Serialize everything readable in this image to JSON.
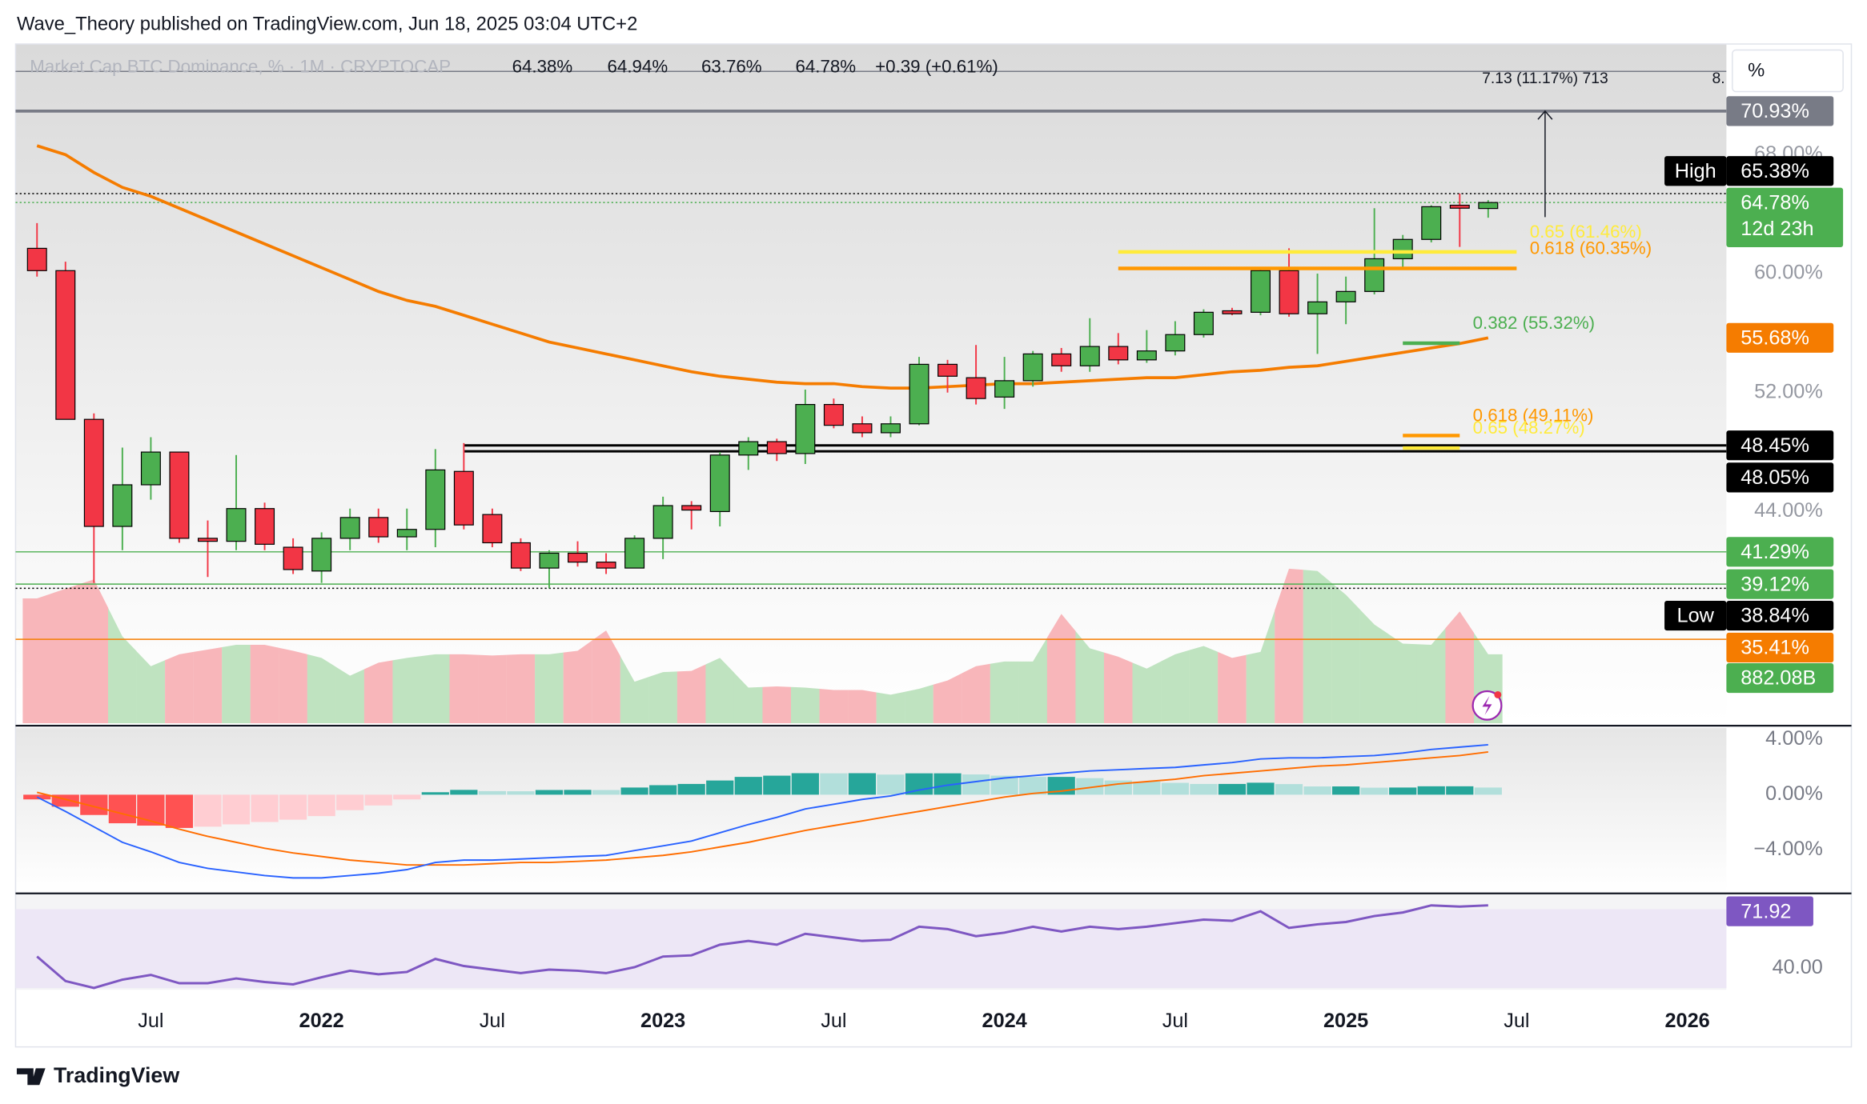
{
  "header": {
    "publisher": "Wave_Theory published on TradingView.com, Jun 18, 2025 03:04 UTC+2",
    "footer": "TradingView"
  },
  "chart_data": {
    "type": "candlestick",
    "title": "Market Cap BTC Dominance, % · 1M · CRYPTOCAP",
    "legend_labels": [
      "64.38%",
      "64.94%",
      "63.76%",
      "64.78%"
    ],
    "change_label": "+0.39 (+0.61%)",
    "scale_mode": "%",
    "grid": false,
    "ylim": [
      29.76,
      75.44
    ],
    "yticks": [
      {
        "value": 44,
        "label": "44.00%"
      },
      {
        "value": 52,
        "label": "52.00%"
      },
      {
        "value": 60,
        "label": "60.00%"
      },
      {
        "value": 68,
        "label": "68.00%"
      }
    ],
    "xticks": [
      {
        "value": "2021-07",
        "label": "Jul"
      },
      {
        "value": "2022-01",
        "label": "2022"
      },
      {
        "value": "2022-07",
        "label": "Jul"
      },
      {
        "value": "2023-01",
        "label": "2023"
      },
      {
        "value": "2023-07",
        "label": "Jul"
      },
      {
        "value": "2024-01",
        "label": "2024"
      },
      {
        "value": "2024-07",
        "label": "Jul"
      },
      {
        "value": "2025-01",
        "label": "2025"
      },
      {
        "value": "2025-07",
        "label": "Jul"
      },
      {
        "value": "2026-01",
        "label": "2026"
      }
    ],
    "candles": {
      "up_color": "#4caf50",
      "down_color": "#f23645",
      "x": [
        "2021-03",
        "2021-04",
        "2021-05",
        "2021-06",
        "2021-07",
        "2021-08",
        "2021-09",
        "2021-10",
        "2021-11",
        "2021-12",
        "2022-01",
        "2022-02",
        "2022-03",
        "2022-04",
        "2022-05",
        "2022-06",
        "2022-07",
        "2022-08",
        "2022-09",
        "2022-10",
        "2022-11",
        "2022-12",
        "2023-01",
        "2023-02",
        "2023-03",
        "2023-04",
        "2023-05",
        "2023-06",
        "2023-07",
        "2023-08",
        "2023-09",
        "2023-10",
        "2023-11",
        "2023-12",
        "2024-01",
        "2024-02",
        "2024-03",
        "2024-04",
        "2024-05",
        "2024-06",
        "2024-07",
        "2024-08",
        "2024-09",
        "2024-10",
        "2024-11",
        "2024-12",
        "2025-01",
        "2025-02",
        "2025-03",
        "2025-04",
        "2025-05",
        "2025-06"
      ],
      "open": [
        61.7,
        60.2,
        50.2,
        43.0,
        45.8,
        48.0,
        42.2,
        42.0,
        44.2,
        41.6,
        40.0,
        42.2,
        43.6,
        42.3,
        42.8,
        46.7,
        43.8,
        41.9,
        40.2,
        41.2,
        40.6,
        40.2,
        42.2,
        44.4,
        44.0,
        47.8,
        48.7,
        47.9,
        51.2,
        49.9,
        49.3,
        49.9,
        53.9,
        53.0,
        51.7,
        52.8,
        54.6,
        53.8,
        55.1,
        54.2,
        54.8,
        55.9,
        57.5,
        57.4,
        60.2,
        57.3,
        58.1,
        58.8,
        61.0,
        62.3,
        64.6,
        64.38
      ],
      "high": [
        63.4,
        60.8,
        50.6,
        48.3,
        49.0,
        48.0,
        43.4,
        47.8,
        44.6,
        42.2,
        42.6,
        44.2,
        44.2,
        44.2,
        48.2,
        48.6,
        44.2,
        42.2,
        41.4,
        42.0,
        41.2,
        42.4,
        45.0,
        44.7,
        48.0,
        49.0,
        48.9,
        52.2,
        51.6,
        50.4,
        50.4,
        54.4,
        54.2,
        55.2,
        54.4,
        54.8,
        55.0,
        57.0,
        56.0,
        56.2,
        56.8,
        57.6,
        57.7,
        60.4,
        61.7,
        60.0,
        59.8,
        64.4,
        62.6,
        64.6,
        65.38,
        64.94
      ],
      "low": [
        59.8,
        50.2,
        39.2,
        41.4,
        44.8,
        41.9,
        39.6,
        41.4,
        41.4,
        39.8,
        39.2,
        41.4,
        41.9,
        41.4,
        41.6,
        42.8,
        41.6,
        40.0,
        38.84,
        40.3,
        39.8,
        40.2,
        40.8,
        42.8,
        43.0,
        46.8,
        47.4,
        47.2,
        49.6,
        49.0,
        49.0,
        49.8,
        52.0,
        51.2,
        50.9,
        52.4,
        53.4,
        53.4,
        53.9,
        54.0,
        54.5,
        55.7,
        57.2,
        57.2,
        57.1,
        54.6,
        56.6,
        58.6,
        60.4,
        62.1,
        61.8,
        63.76
      ],
      "close": [
        60.2,
        50.2,
        43.0,
        45.8,
        48.0,
        42.2,
        42.0,
        44.2,
        41.8,
        40.1,
        42.2,
        43.6,
        42.3,
        42.8,
        46.8,
        43.1,
        41.9,
        40.2,
        41.2,
        40.6,
        40.2,
        42.2,
        44.4,
        44.1,
        47.8,
        48.7,
        47.9,
        51.2,
        49.8,
        49.3,
        49.9,
        53.9,
        53.1,
        51.6,
        52.8,
        54.6,
        53.8,
        55.1,
        54.2,
        54.8,
        55.9,
        57.4,
        57.3,
        60.2,
        57.3,
        58.1,
        58.8,
        61.0,
        62.3,
        64.5,
        64.4,
        64.78
      ]
    },
    "ma": {
      "color": "#f57c00",
      "values": [
        68.6,
        68.0,
        66.8,
        65.8,
        65.2,
        64.4,
        63.6,
        62.8,
        62.0,
        61.2,
        60.4,
        59.6,
        58.8,
        58.2,
        57.8,
        57.2,
        56.6,
        56.0,
        55.4,
        55.0,
        54.6,
        54.2,
        53.8,
        53.4,
        53.1,
        52.9,
        52.7,
        52.6,
        52.6,
        52.4,
        52.3,
        52.3,
        52.4,
        52.5,
        52.6,
        52.6,
        52.7,
        52.8,
        52.9,
        53.0,
        53.0,
        53.2,
        53.4,
        53.5,
        53.7,
        53.8,
        54.1,
        54.4,
        54.7,
        55.0,
        55.3,
        55.68
      ]
    },
    "volume": {
      "ylim": [
        0,
        8679
      ],
      "up_color": "#bfe3c0",
      "down_color": "#f8b6ba",
      "badge_color": "#4caf50",
      "values": [
        1596,
        1718,
        1839,
        1110,
        730,
        882,
        942,
        1003,
        1003,
        927,
        836,
        608,
        775,
        836,
        882,
        882,
        866,
        882,
        882,
        927,
        1186,
        532,
        654,
        669,
        836,
        456,
        471,
        456,
        426,
        426,
        365,
        441,
        547,
        730,
        790,
        790,
        1398,
        958,
        851,
        699,
        882,
        988,
        836,
        912,
        1976,
        1946,
        1642,
        1262,
        1018,
        1003,
        1429,
        882.08
      ],
      "value_labels": [
        null,
        null,
        null,
        null,
        null,
        null,
        null,
        null,
        null,
        null,
        null,
        null,
        null,
        null,
        null,
        null,
        null,
        null,
        null,
        null,
        null,
        null,
        null,
        null,
        null,
        null,
        null,
        null,
        null,
        null,
        null,
        null,
        null,
        null,
        null,
        null,
        null,
        null,
        null,
        null,
        null,
        null,
        null,
        null,
        null,
        null,
        null,
        null,
        null,
        null,
        null,
        "882.08B"
      ]
    },
    "levels": [
      {
        "value": 73.6,
        "color": "#787b86",
        "line": "solid"
      },
      {
        "value": 70.93,
        "label": "70.93%",
        "color": "#787b86",
        "line": "thick"
      },
      {
        "value": 65.38,
        "label": "65.38%",
        "tag": "High",
        "color": "#000000",
        "line": "dotted"
      },
      {
        "value": 64.78,
        "label": "64.78%",
        "countdown": "12d 23h",
        "color": "#4caf50",
        "line": "dotted"
      },
      {
        "value": 55.68,
        "label": "55.68%",
        "color": "#f57c00"
      },
      {
        "value": 48.45,
        "label": "48.45%",
        "color": "#000000",
        "line": "solid",
        "from": "2022-06"
      },
      {
        "value": 48.05,
        "label": "48.05%",
        "color": "#000000",
        "line": "solid",
        "from": "2022-06"
      },
      {
        "value": 41.29,
        "label": "41.29%",
        "color": "#4caf50",
        "line": "solid"
      },
      {
        "value": 39.12,
        "label": "39.12%",
        "color": "#4caf50",
        "line": "solid"
      },
      {
        "value": 38.84,
        "label": "38.84%",
        "tag": "Low",
        "color": "#000000",
        "line": "dotted"
      },
      {
        "value": 35.41,
        "label": "35.41%",
        "color": "#f57c00",
        "line": "solid"
      }
    ],
    "fibs": [
      {
        "value": 61.46,
        "label": "0.65 (61.46%)",
        "color": "#ffeb3b",
        "from": "2024-05",
        "to": "2025-07"
      },
      {
        "value": 60.35,
        "label": "0.618 (60.35%)",
        "color": "#ff9800",
        "from": "2024-05",
        "to": "2025-07"
      },
      {
        "value": 55.32,
        "label": "0.382 (55.32%)",
        "color": "#4caf50",
        "from": "2025-03",
        "to": "2025-05"
      },
      {
        "value": 49.11,
        "label": "0.618 (49.11%)",
        "color": "#ff9800",
        "from": "2025-03",
        "to": "2025-05"
      },
      {
        "value": 48.27,
        "label": "0.65 (48.27%)",
        "color": "#ffeb3b",
        "from": "2025-03",
        "to": "2025-05"
      }
    ],
    "measure": {
      "x": "2025-08",
      "from": 63.8,
      "to": 70.93,
      "label": "7.13 (11.17%) 713",
      "edge_label": "8."
    },
    "macd": {
      "ylim": [
        -7.07,
        4.83
      ],
      "yticks": [
        {
          "value": 4,
          "label": "4.00%"
        },
        {
          "value": 0,
          "label": "0.00%"
        },
        {
          "value": -4,
          "label": "−4.00%"
        }
      ],
      "macd_color": "#2962ff",
      "signal_color": "#ff6d00",
      "hist_colors": {
        "up_grow": "#26a69a",
        "up_fall": "#b2dfdb",
        "down_fall": "#ff5252",
        "down_grow": "#ffcdd2"
      },
      "macd": [
        -0.17,
        -1.21,
        -2.33,
        -3.45,
        -4.14,
        -4.91,
        -5.34,
        -5.6,
        -5.86,
        -6.03,
        -6.03,
        -5.86,
        -5.69,
        -5.43,
        -4.91,
        -4.74,
        -4.74,
        -4.66,
        -4.57,
        -4.48,
        -4.4,
        -4.05,
        -3.71,
        -3.36,
        -2.76,
        -2.16,
        -1.64,
        -1.03,
        -0.69,
        -0.34,
        -0.09,
        0.34,
        0.69,
        0.95,
        1.21,
        1.38,
        1.55,
        1.72,
        1.81,
        1.9,
        1.98,
        2.16,
        2.33,
        2.59,
        2.67,
        2.67,
        2.76,
        2.84,
        3.02,
        3.28,
        3.45,
        3.62
      ],
      "signal": [
        0.17,
        -0.34,
        -0.86,
        -1.38,
        -1.9,
        -2.5,
        -3.02,
        -3.45,
        -3.88,
        -4.22,
        -4.48,
        -4.74,
        -4.91,
        -5.09,
        -5.09,
        -5.09,
        -5.0,
        -4.91,
        -4.91,
        -4.83,
        -4.74,
        -4.57,
        -4.4,
        -4.14,
        -3.79,
        -3.45,
        -3.02,
        -2.59,
        -2.24,
        -1.9,
        -1.55,
        -1.21,
        -0.86,
        -0.52,
        -0.17,
        0.09,
        0.26,
        0.52,
        0.78,
        0.95,
        1.12,
        1.38,
        1.55,
        1.72,
        1.9,
        2.07,
        2.16,
        2.33,
        2.5,
        2.67,
        2.84,
        3.1
      ],
      "histogram": [
        -0.34,
        -0.87,
        -1.47,
        -2.07,
        -2.24,
        -2.41,
        -2.32,
        -2.15,
        -1.98,
        -1.81,
        -1.55,
        -1.12,
        -0.78,
        -0.34,
        0.18,
        0.35,
        0.26,
        0.25,
        0.34,
        0.35,
        0.34,
        0.52,
        0.69,
        0.78,
        1.03,
        1.29,
        1.38,
        1.56,
        1.55,
        1.56,
        1.46,
        1.55,
        1.55,
        1.47,
        1.38,
        1.29,
        1.29,
        1.2,
        1.03,
        0.95,
        0.86,
        0.78,
        0.78,
        0.87,
        0.77,
        0.6,
        0.6,
        0.51,
        0.52,
        0.61,
        0.61,
        0.52
      ]
    },
    "rsi": {
      "ylim": [
        29.16,
        77.35
      ],
      "band": [
        30,
        70
      ],
      "band_color": "#ede7f6",
      "color": "#7e57c2",
      "yticks": [
        {
          "value": 40,
          "label": "40.00"
        }
      ],
      "values": [
        46.0,
        33.6,
        30.1,
        34.3,
        36.7,
        32.5,
        32.5,
        34.9,
        33.1,
        31.9,
        35.5,
        38.8,
        37.0,
        38.2,
        44.8,
        41.2,
        39.4,
        37.6,
        39.4,
        38.8,
        37.6,
        40.6,
        46.0,
        46.6,
        52.0,
        53.9,
        52.0,
        57.5,
        55.7,
        53.9,
        54.5,
        61.1,
        59.9,
        56.3,
        58.1,
        61.1,
        58.7,
        61.1,
        59.9,
        61.1,
        62.9,
        64.7,
        64.1,
        68.9,
        60.5,
        62.3,
        63.5,
        66.5,
        68.3,
        71.9,
        71.3,
        71.92
      ],
      "value_labels": [
        null,
        null,
        null,
        null,
        null,
        null,
        null,
        null,
        null,
        null,
        null,
        null,
        null,
        null,
        null,
        null,
        null,
        null,
        null,
        null,
        null,
        null,
        null,
        null,
        null,
        null,
        null,
        null,
        null,
        null,
        null,
        null,
        null,
        null,
        null,
        null,
        null,
        null,
        null,
        null,
        null,
        null,
        null,
        null,
        null,
        null,
        null,
        null,
        null,
        null,
        null,
        "71.92"
      ]
    }
  }
}
